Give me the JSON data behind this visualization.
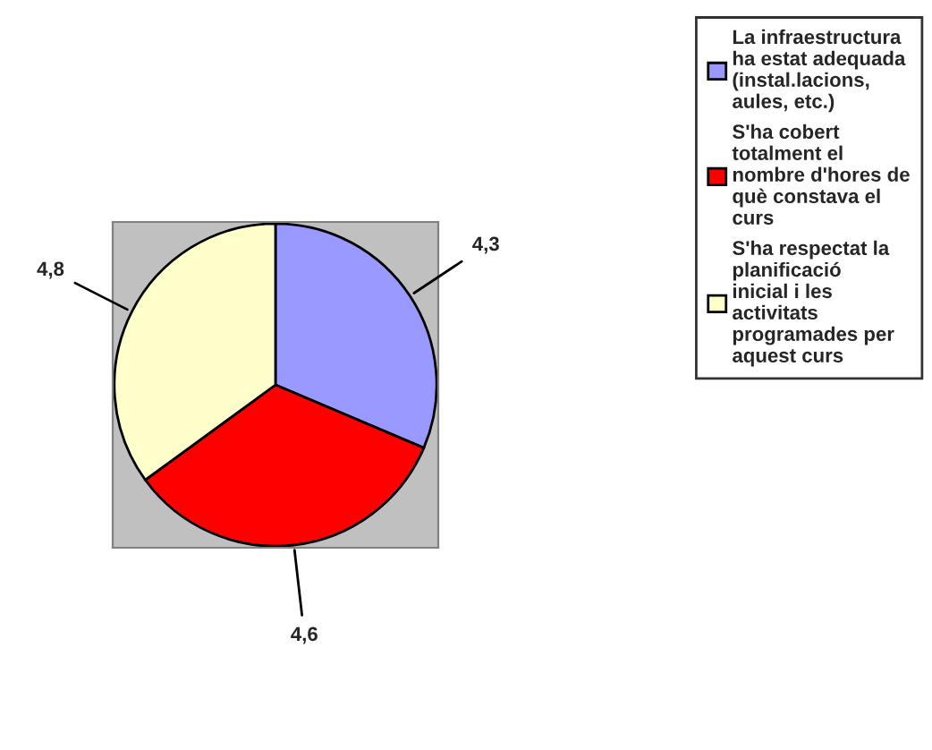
{
  "chart_data": {
    "type": "pie",
    "categories": [
      "La infraestructura ha estat adequada (instal.lacions, aules, etc.)",
      "S'ha cobert totalment el nombre d'hores de què constava el curs",
      "S'ha respectat la planificació inicial i les activitats programades per aquest curs"
    ],
    "values": [
      4.3,
      4.6,
      4.8
    ],
    "colors": [
      "#9999ff",
      "#ff0000",
      "#ffffcc"
    ],
    "value_labels": [
      "4,3",
      "4,6",
      "4,8"
    ],
    "legend": "right"
  }
}
